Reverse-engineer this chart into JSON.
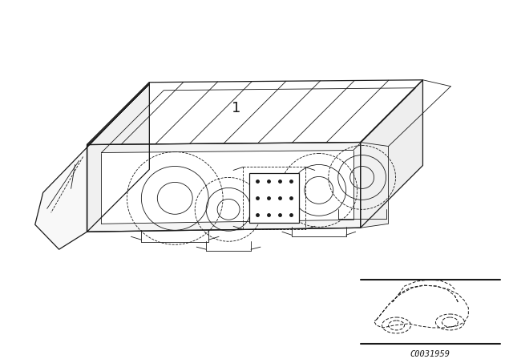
{
  "bg_color": "#ffffff",
  "line_color": "#1a1a1a",
  "fig_width": 6.4,
  "fig_height": 4.48,
  "dpi": 100,
  "part_number_label": "1",
  "diagram_code": "C0031959"
}
